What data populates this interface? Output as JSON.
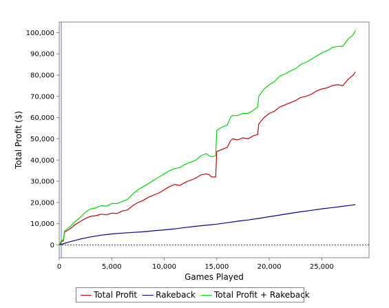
{
  "chart_data": {
    "type": "line",
    "xlabel": "Games Played",
    "ylabel": "Total Profit ($)",
    "xlim": [
      0,
      29500
    ],
    "ylim": [
      -6000,
      105000
    ],
    "x_ticks": [
      0,
      5000,
      10000,
      15000,
      20000,
      25000
    ],
    "x_tick_labels": [
      "0",
      "5,000",
      "10,000",
      "15,000",
      "20,000",
      "25,000"
    ],
    "y_ticks": [
      0,
      10000,
      20000,
      30000,
      40000,
      50000,
      60000,
      70000,
      80000,
      90000,
      100000
    ],
    "y_tick_labels": [
      "0",
      "10,000",
      "20,000",
      "30,000",
      "40,000",
      "50,000",
      "60,000",
      "70,000",
      "80,000",
      "90,000",
      "100,000"
    ],
    "zero_line": true,
    "grid": false,
    "legend_position": "bottom",
    "series": [
      {
        "name": "Total Profit",
        "color": "#cc0000",
        "points": [
          [
            0,
            0
          ],
          [
            200,
            1500
          ],
          [
            400,
            2000
          ],
          [
            500,
            6000
          ],
          [
            1000,
            7500
          ],
          [
            1500,
            9500
          ],
          [
            2000,
            11000
          ],
          [
            2500,
            12500
          ],
          [
            3000,
            13500
          ],
          [
            3500,
            13800
          ],
          [
            4000,
            14500
          ],
          [
            4500,
            14200
          ],
          [
            5000,
            15000
          ],
          [
            5500,
            14800
          ],
          [
            6000,
            16000
          ],
          [
            6500,
            16500
          ],
          [
            7000,
            18500
          ],
          [
            7500,
            20000
          ],
          [
            8000,
            21000
          ],
          [
            8500,
            22500
          ],
          [
            9000,
            23500
          ],
          [
            9500,
            24500
          ],
          [
            10000,
            26000
          ],
          [
            10500,
            27500
          ],
          [
            11000,
            28500
          ],
          [
            11500,
            28000
          ],
          [
            12000,
            29500
          ],
          [
            12500,
            30500
          ],
          [
            13000,
            31500
          ],
          [
            13500,
            33000
          ],
          [
            14000,
            33500
          ],
          [
            14300,
            33000
          ],
          [
            14500,
            32000
          ],
          [
            14900,
            32000
          ],
          [
            15000,
            44000
          ],
          [
            15500,
            45000
          ],
          [
            16000,
            46000
          ],
          [
            16300,
            49000
          ],
          [
            16500,
            50000
          ],
          [
            17000,
            49500
          ],
          [
            17500,
            50500
          ],
          [
            18000,
            50000
          ],
          [
            18500,
            51500
          ],
          [
            18900,
            52000
          ],
          [
            19000,
            57000
          ],
          [
            19500,
            60000
          ],
          [
            20000,
            62000
          ],
          [
            20500,
            63000
          ],
          [
            21000,
            65000
          ],
          [
            21500,
            66000
          ],
          [
            22000,
            67000
          ],
          [
            22500,
            68000
          ],
          [
            23000,
            69500
          ],
          [
            23500,
            70000
          ],
          [
            24000,
            71000
          ],
          [
            24500,
            72500
          ],
          [
            25000,
            73500
          ],
          [
            25500,
            74000
          ],
          [
            26000,
            75000
          ],
          [
            26500,
            75500
          ],
          [
            27000,
            75000
          ],
          [
            27500,
            78000
          ],
          [
            28000,
            80000
          ],
          [
            28200,
            81500
          ]
        ]
      },
      {
        "name": "Rakeback",
        "color": "#000099",
        "points": [
          [
            0,
            0
          ],
          [
            1000,
            1500
          ],
          [
            2000,
            2800
          ],
          [
            3000,
            3800
          ],
          [
            4000,
            4600
          ],
          [
            5000,
            5200
          ],
          [
            6000,
            5600
          ],
          [
            7000,
            5900
          ],
          [
            8000,
            6200
          ],
          [
            9000,
            6700
          ],
          [
            10000,
            7100
          ],
          [
            11000,
            7600
          ],
          [
            12000,
            8200
          ],
          [
            13000,
            8800
          ],
          [
            14000,
            9300
          ],
          [
            15000,
            9800
          ],
          [
            16000,
            10500
          ],
          [
            17000,
            11200
          ],
          [
            18000,
            11800
          ],
          [
            19000,
            12500
          ],
          [
            20000,
            13300
          ],
          [
            21000,
            14100
          ],
          [
            22000,
            14900
          ],
          [
            23000,
            15600
          ],
          [
            24000,
            16300
          ],
          [
            25000,
            17000
          ],
          [
            26000,
            17600
          ],
          [
            27000,
            18200
          ],
          [
            28200,
            19000
          ]
        ]
      },
      {
        "name": "Total Profit + Rakeback",
        "color": "#00dd00",
        "points": [
          [
            0,
            0
          ],
          [
            200,
            2000
          ],
          [
            400,
            2500
          ],
          [
            500,
            6500
          ],
          [
            1000,
            8500
          ],
          [
            1500,
            11000
          ],
          [
            2000,
            13000
          ],
          [
            2500,
            15500
          ],
          [
            3000,
            17000
          ],
          [
            3500,
            17500
          ],
          [
            4000,
            18500
          ],
          [
            4500,
            18300
          ],
          [
            5000,
            19500
          ],
          [
            5500,
            19500
          ],
          [
            6000,
            20500
          ],
          [
            6500,
            21500
          ],
          [
            7000,
            24000
          ],
          [
            7500,
            26000
          ],
          [
            8000,
            27500
          ],
          [
            8500,
            29000
          ],
          [
            9000,
            30500
          ],
          [
            9500,
            32000
          ],
          [
            10000,
            33500
          ],
          [
            10500,
            35000
          ],
          [
            11000,
            36000
          ],
          [
            11500,
            36500
          ],
          [
            12000,
            38000
          ],
          [
            12500,
            39000
          ],
          [
            13000,
            40000
          ],
          [
            13500,
            42000
          ],
          [
            14000,
            43000
          ],
          [
            14300,
            42000
          ],
          [
            14500,
            41500
          ],
          [
            14900,
            42000
          ],
          [
            15000,
            54000
          ],
          [
            15500,
            55500
          ],
          [
            16000,
            56500
          ],
          [
            16300,
            60000
          ],
          [
            16500,
            61000
          ],
          [
            17000,
            61000
          ],
          [
            17500,
            62000
          ],
          [
            18000,
            62000
          ],
          [
            18500,
            63500
          ],
          [
            18900,
            65000
          ],
          [
            19000,
            70000
          ],
          [
            19500,
            73500
          ],
          [
            20000,
            75500
          ],
          [
            20500,
            77000
          ],
          [
            21000,
            79500
          ],
          [
            21500,
            80500
          ],
          [
            22000,
            82000
          ],
          [
            22500,
            83000
          ],
          [
            23000,
            85000
          ],
          [
            23500,
            86000
          ],
          [
            24000,
            87500
          ],
          [
            24500,
            89000
          ],
          [
            25000,
            90500
          ],
          [
            25500,
            91500
          ],
          [
            26000,
            93000
          ],
          [
            26500,
            93500
          ],
          [
            27000,
            93500
          ],
          [
            27500,
            97000
          ],
          [
            28000,
            99000
          ],
          [
            28200,
            101000
          ]
        ]
      }
    ]
  }
}
